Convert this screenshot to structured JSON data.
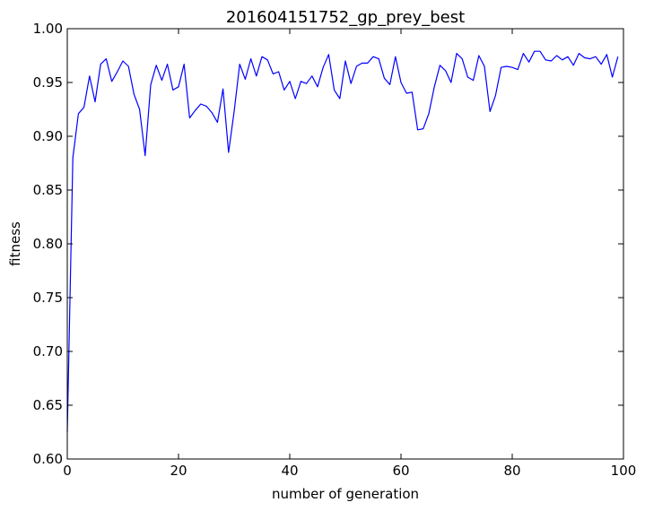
{
  "chart_data": {
    "type": "line",
    "title": "201604151752_gp_prey_best",
    "xlabel": "number of generation",
    "ylabel": "fitness",
    "xlim": [
      0,
      100
    ],
    "ylim": [
      0.6,
      1.0
    ],
    "xticks": [
      "0",
      "20",
      "40",
      "60",
      "80",
      "100"
    ],
    "yticks": [
      "0.60",
      "0.65",
      "0.70",
      "0.75",
      "0.80",
      "0.85",
      "0.90",
      "0.95",
      "1.00"
    ],
    "grid": false,
    "legend": "none",
    "series": [
      {
        "color": "#0000ff",
        "x": [
          0,
          1,
          2,
          3,
          4,
          5,
          6,
          7,
          8,
          9,
          10,
          11,
          12,
          13,
          14,
          15,
          16,
          17,
          18,
          19,
          20,
          21,
          22,
          23,
          24,
          25,
          26,
          27,
          28,
          29,
          30,
          31,
          32,
          33,
          34,
          35,
          36,
          37,
          38,
          39,
          40,
          41,
          42,
          43,
          44,
          45,
          46,
          47,
          48,
          49,
          50,
          51,
          52,
          53,
          54,
          55,
          56,
          57,
          58,
          59,
          60,
          61,
          62,
          63,
          64,
          65,
          66,
          67,
          68,
          69,
          70,
          71,
          72,
          73,
          74,
          75,
          76,
          77,
          78,
          79,
          80,
          81,
          82,
          83,
          84,
          85,
          86,
          87,
          88,
          89,
          90,
          91,
          92,
          93,
          94,
          95,
          96,
          97,
          98,
          99
        ],
        "values": [
          0.625,
          0.88,
          0.921,
          0.927,
          0.956,
          0.932,
          0.967,
          0.972,
          0.951,
          0.96,
          0.97,
          0.965,
          0.939,
          0.925,
          0.882,
          0.948,
          0.966,
          0.952,
          0.967,
          0.943,
          0.946,
          0.967,
          0.917,
          0.924,
          0.93,
          0.928,
          0.922,
          0.913,
          0.944,
          0.885,
          0.923,
          0.967,
          0.953,
          0.972,
          0.956,
          0.974,
          0.971,
          0.958,
          0.96,
          0.943,
          0.951,
          0.935,
          0.951,
          0.949,
          0.956,
          0.946,
          0.964,
          0.976,
          0.943,
          0.935,
          0.97,
          0.949,
          0.965,
          0.968,
          0.968,
          0.974,
          0.972,
          0.954,
          0.948,
          0.974,
          0.95,
          0.94,
          0.941,
          0.906,
          0.907,
          0.921,
          0.946,
          0.966,
          0.961,
          0.95,
          0.977,
          0.972,
          0.955,
          0.952,
          0.975,
          0.965,
          0.923,
          0.938,
          0.964,
          0.965,
          0.964,
          0.962,
          0.977,
          0.969,
          0.979,
          0.979,
          0.971,
          0.97,
          0.975,
          0.971,
          0.974,
          0.966,
          0.977,
          0.973,
          0.972,
          0.974,
          0.967,
          0.976,
          0.955,
          0.974
        ]
      }
    ]
  }
}
